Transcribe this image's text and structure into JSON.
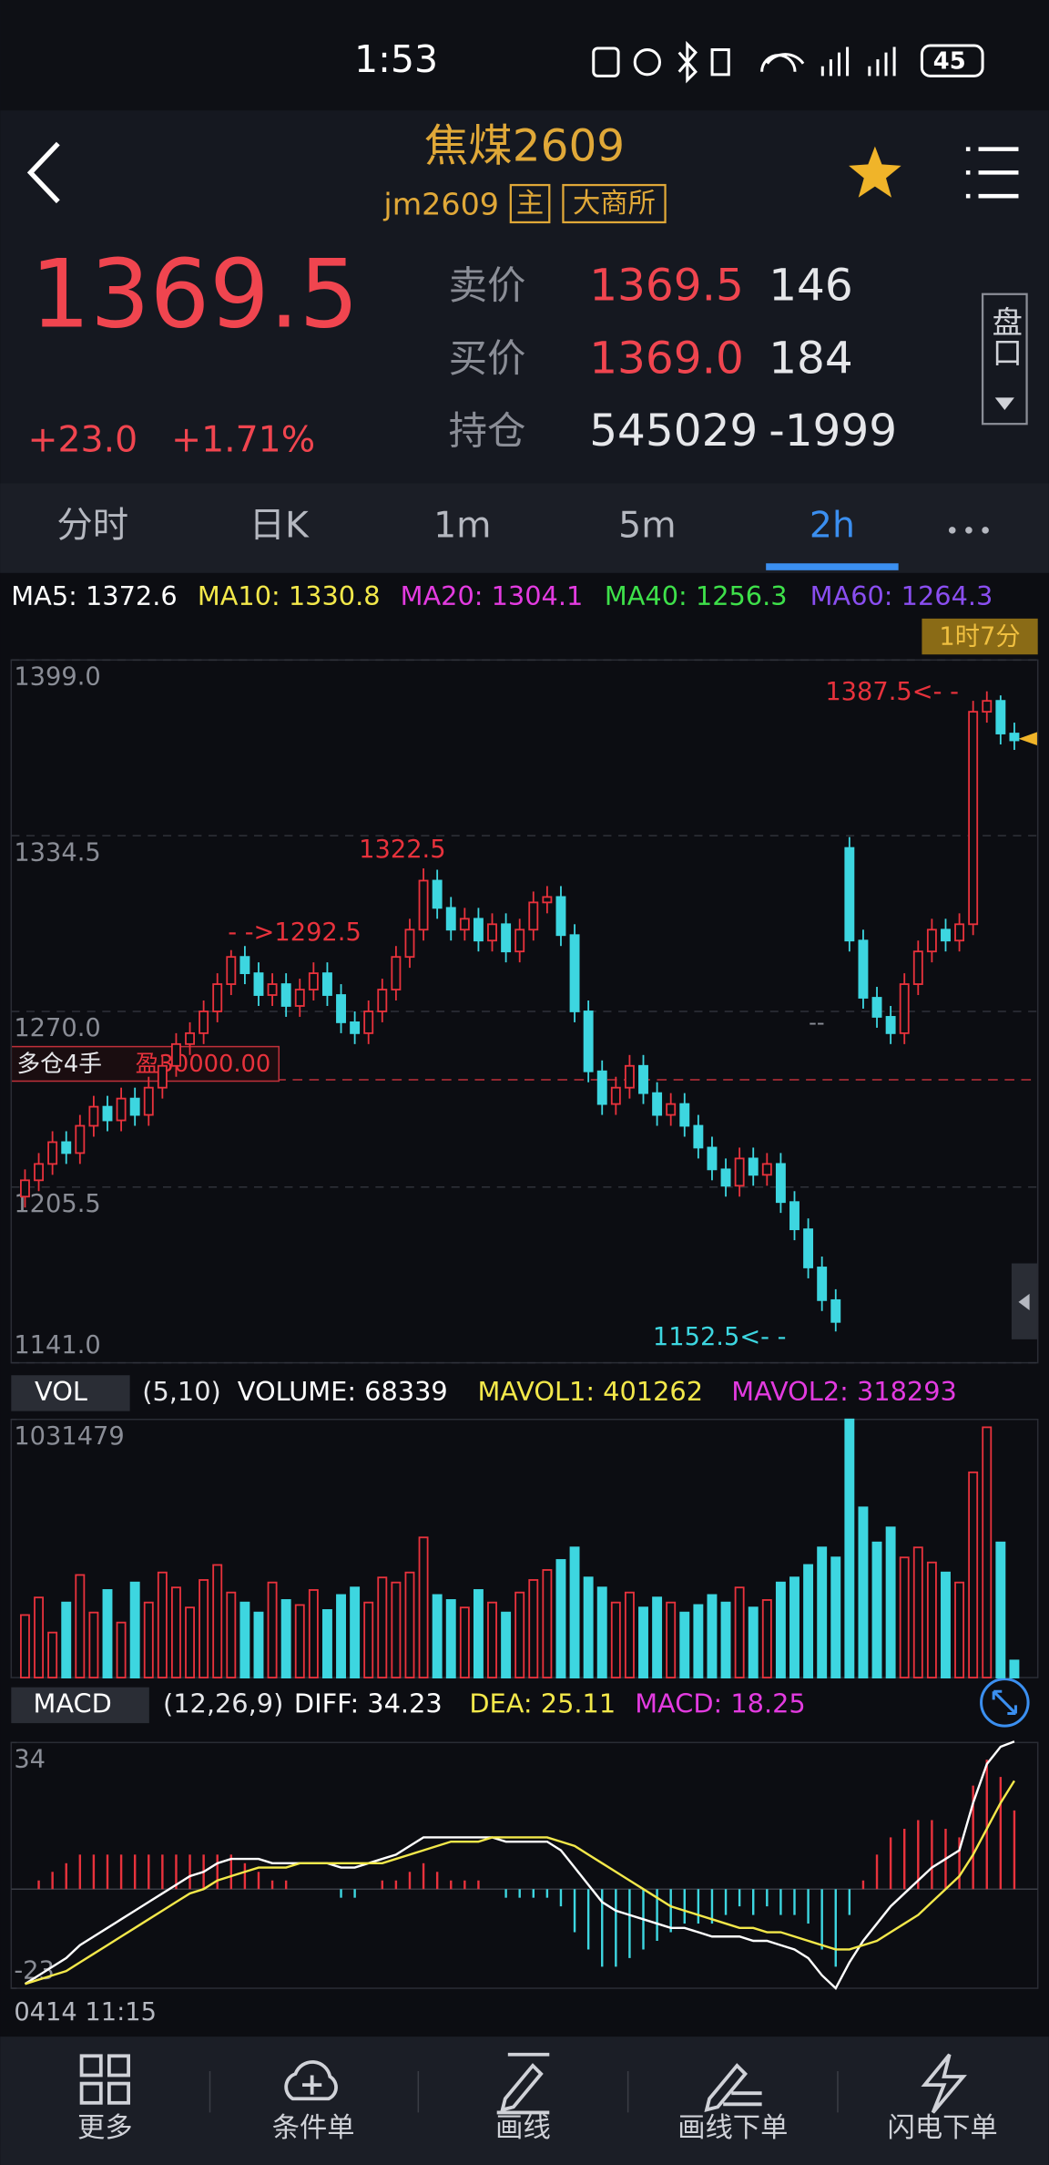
{
  "status_bar": {
    "time": "1:53",
    "battery": "45"
  },
  "header": {
    "title": "焦煤2609",
    "code": "jm2609",
    "tags": [
      "主",
      "大商所"
    ]
  },
  "quote": {
    "last": "1369.5",
    "change": "+23.0",
    "change_pct": "+1.71%",
    "rows": [
      {
        "label": "卖价",
        "price": "1369.5",
        "qty": "146",
        "color": "#f0454f"
      },
      {
        "label": "买价",
        "price": "1369.0",
        "qty": "184",
        "color": "#f0454f"
      },
      {
        "label": "持仓",
        "price": "545029",
        "qty": "-1999",
        "color": "#e6e7ea"
      }
    ],
    "depth_button": "盘口"
  },
  "tabs": {
    "items": [
      "分时",
      "日K",
      "1m",
      "5m",
      "2h"
    ],
    "active": 4
  },
  "indicators": [
    {
      "text": "MA5: 1372.6",
      "color": "#ffffff"
    },
    {
      "text": "MA10: 1330.8",
      "color": "#f3e84a"
    },
    {
      "text": "MA20: 1304.1",
      "color": "#e33be0"
    },
    {
      "text": "MA40: 1256.3",
      "color": "#3ee04a"
    },
    {
      "text": "MA60: 1264.3",
      "color": "#8a4ef0"
    }
  ],
  "countdown": "1时7分",
  "annotations": [
    "1387.5<- -",
    "1322.5",
    "- ->1292.5",
    "1152.5<- -",
    "--"
  ],
  "position": {
    "label": "多仓4手",
    "profit": "盈30000.00"
  },
  "volume_legend": {
    "name": "VOL",
    "params": "(5,10)",
    "items": [
      {
        "text": "VOLUME: 68339",
        "color": "#ffffff"
      },
      {
        "text": "MAVOL1: 401262",
        "color": "#f3e84a"
      },
      {
        "text": "MAVOL2: 318293",
        "color": "#e33be0"
      }
    ]
  },
  "macd_legend": {
    "name": "MACD",
    "params": "(12,26,9)",
    "items": [
      {
        "text": "DIFF: 34.23",
        "color": "#ffffff"
      },
      {
        "text": "DEA: 25.11",
        "color": "#f3e84a"
      },
      {
        "text": "MACD: 18.25",
        "color": "#e33be0"
      }
    ]
  },
  "time_label": "0414 11:15",
  "nav": [
    "更多",
    "条件单",
    "画线",
    "画线下单",
    "闪电下单"
  ],
  "chart_data": [
    {
      "type": "candlestick",
      "up_color": "#e8323c",
      "down_color": "#3dd6e0",
      "grid": true,
      "ylim": [
        1141,
        1399
      ],
      "yticks": [
        {
          "value": 1399,
          "label": "1399.0"
        },
        1334.5,
        {
          "value": 1270,
          "label": "1270.0"
        },
        1205.5,
        {
          "value": 1141,
          "label": "1141.0"
        }
      ],
      "open": [
        1202,
        1208,
        1214,
        1222,
        1218,
        1228,
        1235,
        1230,
        1238,
        1232,
        1242,
        1250,
        1258,
        1262,
        1270,
        1280,
        1290,
        1284,
        1276,
        1280,
        1272,
        1278,
        1284,
        1276,
        1266,
        1262,
        1270,
        1278,
        1290,
        1300,
        1318,
        1308,
        1300,
        1304,
        1296,
        1302,
        1292,
        1300,
        1310,
        1312,
        1298,
        1270,
        1248,
        1236,
        1242,
        1250,
        1240,
        1232,
        1236,
        1228,
        1220,
        1212,
        1206,
        1216,
        1210,
        1214,
        1200,
        1190,
        1176,
        1164,
        1330,
        1296,
        1275,
        1268,
        1262,
        1280,
        1292,
        1300,
        1296,
        1302,
        1380,
        1384,
        1372
      ],
      "high": [
        1212,
        1218,
        1226,
        1226,
        1232,
        1239,
        1239,
        1242,
        1242,
        1246,
        1254,
        1262,
        1266,
        1274,
        1284,
        1292.5,
        1294,
        1288,
        1284,
        1284,
        1282,
        1288,
        1288,
        1280,
        1270,
        1274,
        1282,
        1294,
        1304,
        1322.5,
        1322,
        1312,
        1308,
        1308,
        1306,
        1306,
        1304,
        1314,
        1316,
        1316,
        1302,
        1274,
        1252,
        1246,
        1254,
        1254,
        1244,
        1240,
        1240,
        1232,
        1224,
        1216,
        1220,
        1220,
        1218,
        1218,
        1204,
        1194,
        1180,
        1168,
        1334,
        1300,
        1279,
        1272,
        1284,
        1296,
        1304,
        1304,
        1306,
        1384,
        1387.5,
        1386,
        1376
      ],
      "low": [
        1198,
        1204,
        1210,
        1214,
        1214,
        1224,
        1226,
        1226,
        1228,
        1228,
        1238,
        1246,
        1254,
        1258,
        1266,
        1276,
        1280,
        1272,
        1272,
        1268,
        1268,
        1274,
        1272,
        1262,
        1258,
        1258,
        1266,
        1274,
        1286,
        1296,
        1304,
        1296,
        1296,
        1292,
        1292,
        1288,
        1288,
        1296,
        1306,
        1294,
        1266,
        1244,
        1232,
        1232,
        1238,
        1236,
        1228,
        1228,
        1224,
        1216,
        1208,
        1202,
        1202,
        1206,
        1206,
        1196,
        1186,
        1172,
        1160,
        1152.5,
        1292,
        1271,
        1264,
        1258,
        1258,
        1276,
        1288,
        1292,
        1292,
        1298,
        1376,
        1368,
        1366
      ],
      "close": [
        1208,
        1214,
        1222,
        1218,
        1228,
        1235,
        1230,
        1238,
        1232,
        1242,
        1250,
        1258,
        1262,
        1270,
        1280,
        1290,
        1284,
        1276,
        1280,
        1272,
        1278,
        1284,
        1276,
        1266,
        1262,
        1270,
        1278,
        1290,
        1300,
        1318,
        1308,
        1300,
        1304,
        1296,
        1302,
        1292,
        1300,
        1310,
        1312,
        1298,
        1270,
        1248,
        1236,
        1242,
        1250,
        1240,
        1232,
        1236,
        1228,
        1220,
        1212,
        1206,
        1216,
        1210,
        1214,
        1200,
        1190,
        1176,
        1164,
        1156,
        1296,
        1275,
        1268,
        1262,
        1280,
        1292,
        1300,
        1296,
        1302,
        1380,
        1384,
        1372,
        1369.5
      ]
    },
    {
      "type": "bar",
      "ylim": [
        0,
        1031479
      ],
      "yticks": [
        1031479
      ],
      "values": [
        250000,
        320000,
        180000,
        300000,
        410000,
        260000,
        350000,
        220000,
        380000,
        300000,
        420000,
        360000,
        280000,
        390000,
        450000,
        340000,
        300000,
        260000,
        380000,
        310000,
        290000,
        350000,
        270000,
        330000,
        360000,
        300000,
        400000,
        380000,
        420000,
        560000,
        330000,
        310000,
        280000,
        350000,
        300000,
        260000,
        340000,
        390000,
        430000,
        470000,
        520000,
        400000,
        360000,
        300000,
        340000,
        280000,
        320000,
        300000,
        260000,
        290000,
        330000,
        300000,
        360000,
        280000,
        310000,
        380000,
        400000,
        450000,
        520000,
        480000,
        1031479,
        680000,
        540000,
        600000,
        480000,
        520000,
        460000,
        420000,
        380000,
        820000,
        1000000,
        540000,
        68339
      ]
    },
    {
      "type": "macd",
      "ylim": [
        -23,
        34
      ],
      "yticks": [
        34,
        -23
      ],
      "up_color": "#e8323c",
      "down_color": "#3dd6e0",
      "diff_color": "#ffffff",
      "dea_color": "#f3e84a",
      "histogram": [
        0,
        2,
        4,
        6,
        8,
        8,
        8,
        8,
        8,
        8,
        8,
        8,
        8,
        8,
        8,
        8,
        6,
        4,
        2,
        2,
        0,
        0,
        0,
        -2,
        -2,
        0,
        2,
        2,
        4,
        6,
        4,
        2,
        2,
        2,
        0,
        -2,
        -2,
        -2,
        -2,
        -4,
        -10,
        -14,
        -18,
        -18,
        -16,
        -14,
        -12,
        -10,
        -8,
        -8,
        -8,
        -6,
        -4,
        -6,
        -4,
        -6,
        -6,
        -8,
        -14,
        -18,
        -6,
        2,
        8,
        12,
        14,
        16,
        16,
        14,
        12,
        24,
        30,
        26,
        18.25
      ],
      "diff": [
        -22,
        -20,
        -18,
        -16,
        -13,
        -11,
        -9,
        -7,
        -5,
        -3,
        -1,
        1,
        3,
        4,
        6,
        7,
        7,
        7,
        6,
        6,
        6,
        6,
        6,
        5,
        5,
        6,
        7,
        8,
        10,
        12,
        12,
        12,
        12,
        12,
        12,
        11,
        11,
        11,
        11,
        9,
        5,
        1,
        -3,
        -5,
        -6,
        -7,
        -8,
        -9,
        -9,
        -10,
        -11,
        -11,
        -11,
        -12,
        -12,
        -13,
        -14,
        -16,
        -20,
        -23,
        -17,
        -12,
        -8,
        -4,
        -1,
        2,
        5,
        7,
        9,
        20,
        29,
        33,
        34.23
      ],
      "dea": [
        -22,
        -21,
        -20,
        -19,
        -17,
        -15,
        -13,
        -11,
        -9,
        -7,
        -5,
        -3,
        -1,
        0,
        2,
        3,
        4,
        5,
        5,
        5,
        6,
        6,
        6,
        6,
        6,
        6,
        6,
        7,
        8,
        9,
        10,
        11,
        11,
        11,
        12,
        12,
        12,
        12,
        12,
        11,
        10,
        8,
        6,
        4,
        2,
        0,
        -2,
        -4,
        -5,
        -6,
        -7,
        -8,
        -9,
        -9,
        -10,
        -10,
        -11,
        -12,
        -13,
        -14,
        -14,
        -13,
        -12,
        -10,
        -8,
        -6,
        -3,
        0,
        3,
        8,
        14,
        20,
        25.11
      ]
    }
  ]
}
